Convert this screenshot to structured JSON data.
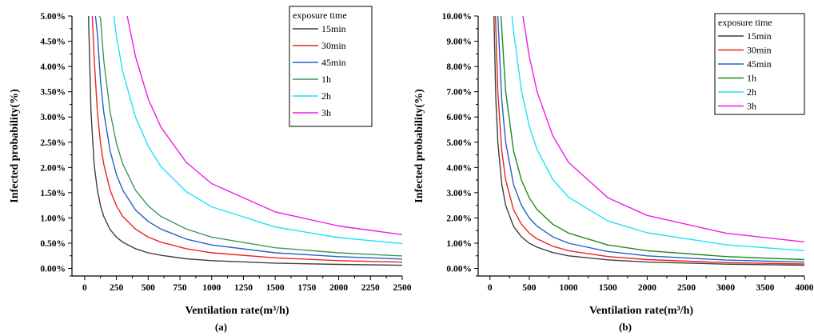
{
  "chart_data": [
    {
      "type": "line",
      "panel_label": "(a)",
      "xlabel": "Ventilation rate(m³/h)",
      "ylabel": "Infected probability(%)",
      "xlim": [
        -100,
        2500
      ],
      "ylim": [
        -0.15,
        5.0
      ],
      "xticks": [
        0,
        250,
        500,
        750,
        1000,
        1250,
        1500,
        1750,
        2000,
        2250,
        2500
      ],
      "yticks": [
        0,
        0.5,
        1.0,
        1.5,
        2.0,
        2.5,
        3.0,
        3.5,
        4.0,
        4.5,
        5.0
      ],
      "ytick_labels": [
        "0.00%",
        "0.50%",
        "1.00%",
        "1.50%",
        "2.00%",
        "2.50%",
        "3.00%",
        "3.50%",
        "4.00%",
        "4.50%",
        "5.00%"
      ],
      "legend_title": "exposure time",
      "legend_position": "top-right",
      "series": [
        {
          "name": "15min",
          "color": "#3f3f3f",
          "x": [
            30,
            50,
            75,
            100,
            125,
            150,
            200,
            250,
            300,
            400,
            500,
            600,
            800,
            1000,
            1500,
            2000,
            2500
          ],
          "values": [
            5.0,
            3.1,
            2.05,
            1.55,
            1.24,
            1.03,
            0.77,
            0.62,
            0.52,
            0.39,
            0.31,
            0.26,
            0.19,
            0.155,
            0.105,
            0.08,
            0.062
          ]
        },
        {
          "name": "30min",
          "color": "#e8261e",
          "x": [
            60,
            75,
            100,
            125,
            150,
            200,
            250,
            300,
            400,
            500,
            600,
            800,
            1000,
            1500,
            2000,
            2500
          ],
          "values": [
            5.0,
            4.15,
            3.1,
            2.48,
            2.07,
            1.55,
            1.24,
            1.03,
            0.78,
            0.62,
            0.52,
            0.39,
            0.31,
            0.21,
            0.155,
            0.124
          ]
        },
        {
          "name": "45min",
          "color": "#2162c6",
          "x": [
            85,
            100,
            125,
            150,
            200,
            250,
            300,
            400,
            500,
            600,
            800,
            1000,
            1500,
            2000,
            2500
          ],
          "values": [
            5.0,
            4.65,
            3.72,
            3.1,
            2.33,
            1.86,
            1.55,
            1.16,
            0.93,
            0.78,
            0.58,
            0.465,
            0.31,
            0.233,
            0.186
          ]
        },
        {
          "name": "1h",
          "color": "#3a9a5b",
          "x": [
            115,
            125,
            150,
            200,
            250,
            300,
            400,
            500,
            600,
            800,
            1000,
            1500,
            2000,
            2500
          ],
          "values": [
            5.0,
            4.96,
            4.13,
            3.1,
            2.48,
            2.07,
            1.55,
            1.24,
            1.03,
            0.78,
            0.62,
            0.41,
            0.31,
            0.248
          ]
        },
        {
          "name": "2h",
          "color": "#1fe3f2",
          "x": [
            230,
            250,
            300,
            400,
            500,
            600,
            800,
            1000,
            1500,
            2000,
            2500
          ],
          "values": [
            5.0,
            4.6,
            3.9,
            3.0,
            2.42,
            2.02,
            1.52,
            1.22,
            0.82,
            0.61,
            0.49
          ]
        },
        {
          "name": "3h",
          "color": "#ee1ce6",
          "x": [
            335,
            400,
            500,
            600,
            800,
            1000,
            1500,
            2000,
            2500
          ],
          "values": [
            5.0,
            4.2,
            3.36,
            2.8,
            2.1,
            1.68,
            1.12,
            0.84,
            0.67
          ]
        }
      ]
    },
    {
      "type": "line",
      "panel_label": "(b)",
      "xlabel": "Ventilation rate(m³/h)",
      "ylabel": "Infected probability(%)",
      "xlim": [
        -150,
        4000
      ],
      "ylim": [
        -0.3,
        10.0
      ],
      "xticks": [
        0,
        500,
        1000,
        1500,
        2000,
        2500,
        3000,
        3500,
        4000
      ],
      "yticks": [
        0,
        1,
        2,
        3,
        4,
        5,
        6,
        7,
        8,
        9,
        10
      ],
      "ytick_labels": [
        "0.00%",
        "1.00%",
        "2.00%",
        "3.00%",
        "4.00%",
        "5.00%",
        "6.00%",
        "7.00%",
        "8.00%",
        "9.00%",
        "10.00%"
      ],
      "legend_title": "exposure time",
      "legend_position": "top-right",
      "series": [
        {
          "name": "15min",
          "color": "#3f3f3f",
          "x": [
            50,
            75,
            100,
            150,
            200,
            300,
            400,
            500,
            600,
            800,
            1000,
            1500,
            2000,
            3000,
            4000
          ],
          "values": [
            10.0,
            6.7,
            5.0,
            3.35,
            2.5,
            1.67,
            1.25,
            1.0,
            0.84,
            0.63,
            0.5,
            0.34,
            0.25,
            0.17,
            0.125
          ]
        },
        {
          "name": "30min",
          "color": "#e8261e",
          "x": [
            70,
            100,
            150,
            200,
            300,
            400,
            500,
            600,
            800,
            1000,
            1500,
            2000,
            3000,
            4000
          ],
          "values": [
            10.0,
            7.0,
            4.67,
            3.5,
            2.33,
            1.75,
            1.4,
            1.17,
            0.88,
            0.7,
            0.47,
            0.35,
            0.23,
            0.175
          ]
        },
        {
          "name": "45min",
          "color": "#2162c6",
          "x": [
            100,
            150,
            200,
            300,
            400,
            500,
            600,
            800,
            1000,
            1500,
            2000,
            3000,
            4000
          ],
          "values": [
            10.0,
            6.67,
            5.0,
            3.33,
            2.5,
            2.0,
            1.67,
            1.25,
            1.0,
            0.67,
            0.5,
            0.33,
            0.25
          ]
        },
        {
          "name": "1h",
          "color": "#1e8c1a",
          "x": [
            140,
            200,
            300,
            400,
            500,
            600,
            800,
            1000,
            1500,
            2000,
            3000,
            4000
          ],
          "values": [
            10.0,
            7.0,
            4.67,
            3.5,
            2.8,
            2.33,
            1.75,
            1.4,
            0.93,
            0.7,
            0.47,
            0.35
          ]
        },
        {
          "name": "2h",
          "color": "#1fe3f2",
          "x": [
            280,
            300,
            400,
            500,
            600,
            800,
            1000,
            1500,
            2000,
            3000,
            4000
          ],
          "values": [
            10.0,
            9.4,
            7.05,
            5.64,
            4.7,
            3.52,
            2.82,
            1.88,
            1.41,
            0.94,
            0.7
          ]
        },
        {
          "name": "3h",
          "color": "#ee1ce6",
          "x": [
            420,
            500,
            600,
            800,
            1000,
            1500,
            2000,
            3000,
            4000
          ],
          "values": [
            10.0,
            8.4,
            7.0,
            5.25,
            4.2,
            2.8,
            2.1,
            1.4,
            1.05
          ]
        }
      ]
    }
  ]
}
